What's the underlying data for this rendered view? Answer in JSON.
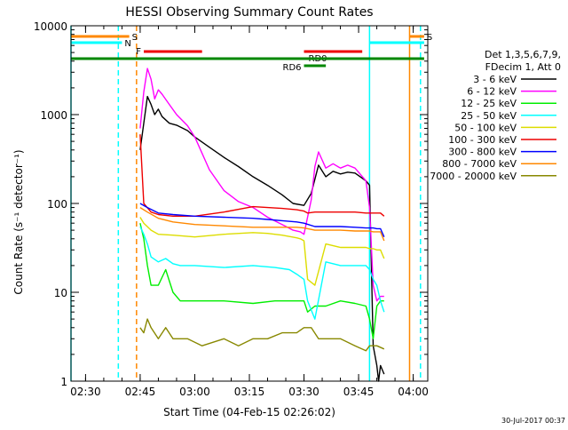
{
  "chart_data": {
    "type": "line",
    "title": "HESSI Observing Summary Count Rates",
    "xlabel": "Start Time (04-Feb-15 02:26:02)",
    "ylabel": "Count Rate (s⁻¹ detector⁻¹)",
    "y_scale": "log",
    "ylim": [
      1,
      10000
    ],
    "xlim": [
      "02:26",
      "04:04"
    ],
    "x_ticks": [
      "02:30",
      "02:45",
      "03:00",
      "03:15",
      "03:30",
      "03:45",
      "04:00"
    ],
    "y_ticks": [
      "1",
      "10",
      "100",
      "1000",
      "10000"
    ],
    "timestamp": "30-Jul-2017 00:37",
    "legend_header": [
      "Det 1,3,5,6,7,9,",
      "FDecim 1, Att 0"
    ],
    "legend_position": "right",
    "series": [
      {
        "name": "3 - 6 keV",
        "color": "#000000",
        "x": [
          "02:45",
          "02:46",
          "02:47",
          "02:48",
          "02:49",
          "02:50",
          "02:51",
          "02:53",
          "02:55",
          "02:58",
          "03:00",
          "03:04",
          "03:08",
          "03:12",
          "03:16",
          "03:20",
          "03:24",
          "03:27",
          "03:30",
          "03:32",
          "03:34",
          "03:36",
          "03:38",
          "03:40",
          "03:42",
          "03:44",
          "03:47",
          "03:48",
          "03:49",
          "03:50",
          "03:50.5",
          "03:51",
          "03:52"
        ],
        "y": [
          400,
          800,
          1600,
          1300,
          1000,
          1150,
          950,
          800,
          760,
          660,
          560,
          430,
          330,
          260,
          200,
          160,
          125,
          100,
          95,
          130,
          270,
          200,
          230,
          215,
          225,
          220,
          180,
          160,
          2.5,
          1.5,
          1,
          1.5,
          1.2
        ]
      },
      {
        "name": "6 - 12 keV",
        "color": "#ff00ff",
        "x": [
          "02:45",
          "02:46",
          "02:47",
          "02:48",
          "02:49",
          "02:50",
          "02:51",
          "02:53",
          "02:55",
          "02:58",
          "03:00",
          "03:04",
          "03:08",
          "03:12",
          "03:16",
          "03:20",
          "03:24",
          "03:27",
          "03:29",
          "03:30",
          "03:32",
          "03:33",
          "03:34",
          "03:36",
          "03:38",
          "03:40",
          "03:42",
          "03:44",
          "03:47",
          "03:48",
          "03:49",
          "03:50",
          "03:51",
          "03:52"
        ],
        "y": [
          700,
          1800,
          3300,
          2500,
          1500,
          1900,
          1700,
          1300,
          1000,
          750,
          560,
          240,
          140,
          105,
          90,
          70,
          58,
          50,
          48,
          45,
          110,
          260,
          380,
          250,
          280,
          250,
          270,
          250,
          180,
          90,
          12,
          8,
          9,
          9
        ]
      },
      {
        "name": "12 - 25 keV",
        "color": "#00ee00",
        "x": [
          "02:45",
          "02:46",
          "02:47",
          "02:48",
          "02:50",
          "02:52",
          "02:54",
          "02:56",
          "03:00",
          "03:08",
          "03:16",
          "03:22",
          "03:26",
          "03:30",
          "03:31",
          "03:33",
          "03:36",
          "03:40",
          "03:44",
          "03:47",
          "03:48",
          "03:49",
          "03:50",
          "03:51",
          "03:52"
        ],
        "y": [
          60,
          40,
          20,
          12,
          12,
          18,
          10,
          8,
          8,
          8,
          7.5,
          8,
          8,
          8,
          6,
          7,
          7,
          8,
          7.5,
          7,
          5,
          3,
          7,
          8,
          8
        ]
      },
      {
        "name": "25 - 50 keV",
        "color": "#00ffff",
        "x": [
          "02:45",
          "02:46",
          "02:47",
          "02:48",
          "02:50",
          "02:52",
          "02:54",
          "02:56",
          "03:00",
          "03:08",
          "03:16",
          "03:22",
          "03:26",
          "03:28",
          "03:30",
          "03:31",
          "03:33",
          "03:36",
          "03:40",
          "03:44",
          "03:47",
          "03:48",
          "03:49",
          "03:50",
          "03:51",
          "03:52"
        ],
        "y": [
          55,
          45,
          35,
          25,
          22,
          24,
          21,
          20,
          20,
          19,
          20,
          19,
          18,
          16,
          14,
          8,
          5,
          22,
          20,
          20,
          20,
          18,
          14,
          12,
          8,
          6
        ]
      },
      {
        "name": "50 - 100 keV",
        "color": "#dddd00",
        "x": [
          "02:45",
          "02:46",
          "02:48",
          "02:50",
          "02:54",
          "03:00",
          "03:08",
          "03:16",
          "03:20",
          "03:24",
          "03:28",
          "03:29",
          "03:30",
          "03:31",
          "03:33",
          "03:36",
          "03:40",
          "03:44",
          "03:47",
          "03:48",
          "03:49",
          "03:50",
          "03:51",
          "03:52"
        ],
        "y": [
          70,
          60,
          50,
          45,
          44,
          42,
          45,
          47,
          46,
          44,
          41,
          40,
          38,
          14,
          12,
          35,
          32,
          32,
          32,
          31,
          31,
          30,
          30,
          24
        ]
      },
      {
        "name": "100 - 300 keV",
        "color": "#ee0000",
        "x": [
          "02:45",
          "02:46",
          "02:48",
          "02:50",
          "02:54",
          "03:00",
          "03:08",
          "03:16",
          "03:20",
          "03:24",
          "03:28",
          "03:30",
          "03:31",
          "03:33",
          "03:36",
          "03:40",
          "03:44",
          "03:47",
          "03:48",
          "03:49",
          "03:50",
          "03:51",
          "03:52"
        ],
        "y": [
          600,
          100,
          80,
          75,
          72,
          72,
          80,
          92,
          90,
          88,
          85,
          82,
          78,
          80,
          80,
          80,
          80,
          78,
          78,
          78,
          78,
          78,
          72
        ]
      },
      {
        "name": "300 - 800 keV",
        "color": "#0000ff",
        "x": [
          "02:45",
          "02:47",
          "02:50",
          "02:54",
          "03:00",
          "03:08",
          "03:16",
          "03:20",
          "03:24",
          "03:28",
          "03:30",
          "03:33",
          "03:36",
          "03:40",
          "03:44",
          "03:47",
          "03:48",
          "03:49",
          "03:50",
          "03:51",
          "03:52"
        ],
        "y": [
          100,
          90,
          78,
          75,
          72,
          70,
          68,
          66,
          64,
          62,
          60,
          55,
          55,
          55,
          54,
          53,
          53,
          53,
          52,
          52,
          42
        ]
      },
      {
        "name": "800 - 7000 keV",
        "color": "#ff8800",
        "x": [
          "02:45",
          "02:47",
          "02:50",
          "02:54",
          "03:00",
          "03:08",
          "03:16",
          "03:20",
          "03:24",
          "03:28",
          "03:30",
          "03:33",
          "03:36",
          "03:40",
          "03:44",
          "03:47",
          "03:48",
          "03:49",
          "03:50",
          "03:51",
          "03:52"
        ],
        "y": [
          90,
          80,
          68,
          62,
          58,
          56,
          54,
          54,
          54,
          54,
          53,
          50,
          50,
          50,
          49,
          49,
          49,
          48,
          48,
          48,
          38
        ]
      },
      {
        "name": "7000 - 20000 keV",
        "color": "#888800",
        "x": [
          "02:45",
          "02:46",
          "02:47",
          "02:48",
          "02:50",
          "02:52",
          "02:54",
          "02:58",
          "03:02",
          "03:08",
          "03:12",
          "03:16",
          "03:20",
          "03:24",
          "03:28",
          "03:30",
          "03:32",
          "03:34",
          "03:36",
          "03:40",
          "03:44",
          "03:47",
          "03:48",
          "03:50",
          "03:52"
        ],
        "y": [
          4,
          3.5,
          5,
          4,
          3,
          4,
          3,
          3,
          2.5,
          3,
          2.5,
          3,
          3,
          3.5,
          3.5,
          4,
          4,
          3,
          3,
          3,
          2.5,
          2.2,
          2.5,
          2.5,
          2.3
        ]
      }
    ],
    "flags": [
      {
        "label": "S",
        "color": "#ff8800",
        "start": "02:26",
        "end": "02:42"
      },
      {
        "label": "S",
        "color": "#ff8800",
        "start": "03:59",
        "end": "04:03"
      },
      {
        "label": "N",
        "color": "#00ffff",
        "start": "02:26",
        "end": "02:40"
      },
      {
        "label": "",
        "color": "#00ffff",
        "start": "03:48",
        "end": "04:03"
      },
      {
        "label": "F",
        "color": "#ee0000",
        "start": "02:46",
        "end": "03:02"
      },
      {
        "label": "RD0",
        "color": "#ee0000",
        "start": "03:30",
        "end": "03:46"
      },
      {
        "label": "",
        "color": "#008800",
        "start": "02:26",
        "end": "04:03"
      },
      {
        "label": "RD6",
        "color": "#008800",
        "start": "03:30",
        "end": "03:36"
      }
    ],
    "vlines": [
      {
        "time": "02:26",
        "color": "#00ffff",
        "dash": "solid"
      },
      {
        "time": "02:39",
        "color": "#00ffff",
        "dash": "dashed"
      },
      {
        "time": "02:44",
        "color": "#ff8800",
        "dash": "dashed"
      },
      {
        "time": "03:48",
        "color": "#00ffff",
        "dash": "solid"
      },
      {
        "time": "03:59",
        "color": "#ff8800",
        "dash": "solid"
      },
      {
        "time": "04:02",
        "color": "#00ffff",
        "dash": "dashed"
      }
    ]
  }
}
